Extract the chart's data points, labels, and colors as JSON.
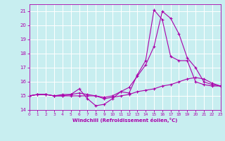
{
  "xlabel": "Windchill (Refroidissement éolien,°C)",
  "bg_color": "#c8eef0",
  "grid_color": "#ffffff",
  "line_color": "#aa00aa",
  "xmin": 0,
  "xmax": 23,
  "ymin": 14,
  "ymax": 21.5,
  "series": [
    {
      "x": [
        0,
        1,
        2,
        3,
        4,
        5,
        6,
        7,
        8,
        9,
        10,
        11,
        12,
        13,
        14,
        15,
        16,
        17,
        18,
        19,
        20,
        21,
        22,
        23
      ],
      "y": [
        15.0,
        15.1,
        15.1,
        15.0,
        15.1,
        15.1,
        15.5,
        14.8,
        14.3,
        14.4,
        14.8,
        15.3,
        15.2,
        16.5,
        17.5,
        21.1,
        20.4,
        17.8,
        17.5,
        17.5,
        16.0,
        15.8,
        15.7,
        15.7
      ]
    },
    {
      "x": [
        0,
        1,
        2,
        3,
        4,
        5,
        6,
        7,
        8,
        9,
        10,
        11,
        12,
        13,
        14,
        15,
        16,
        17,
        18,
        19,
        20,
        21,
        22,
        23
      ],
      "y": [
        15.0,
        15.1,
        15.1,
        15.0,
        15.0,
        15.1,
        15.2,
        15.1,
        15.0,
        14.9,
        15.0,
        15.3,
        15.6,
        16.4,
        17.2,
        18.5,
        21.0,
        20.5,
        19.4,
        17.7,
        17.0,
        16.0,
        15.8,
        15.7
      ]
    },
    {
      "x": [
        0,
        1,
        2,
        3,
        4,
        5,
        6,
        7,
        8,
        9,
        10,
        11,
        12,
        13,
        14,
        15,
        16,
        17,
        18,
        19,
        20,
        21,
        22,
        23
      ],
      "y": [
        15.0,
        15.1,
        15.1,
        15.0,
        15.0,
        15.0,
        15.0,
        15.0,
        15.0,
        14.8,
        14.9,
        15.0,
        15.1,
        15.3,
        15.4,
        15.5,
        15.7,
        15.8,
        16.0,
        16.2,
        16.3,
        16.2,
        15.9,
        15.7
      ]
    }
  ],
  "yticks": [
    14,
    15,
    16,
    17,
    18,
    19,
    20,
    21
  ],
  "xticks": [
    0,
    1,
    2,
    3,
    4,
    5,
    6,
    7,
    8,
    9,
    10,
    11,
    12,
    13,
    14,
    15,
    16,
    17,
    18,
    19,
    20,
    21,
    22,
    23
  ]
}
